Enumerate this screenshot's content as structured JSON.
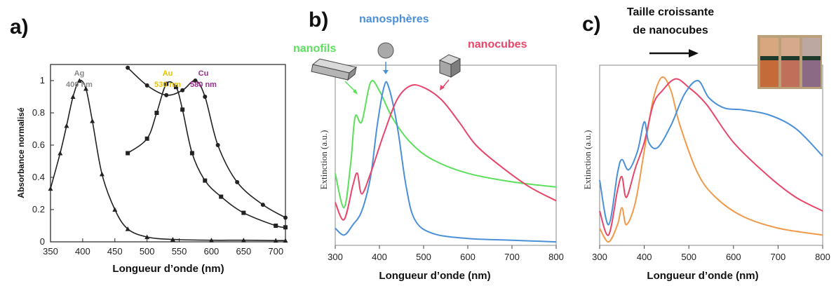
{
  "chart_data": [
    {
      "panel": "a)",
      "type": "line",
      "xlabel": "Longueur d’onde (nm)",
      "ylabel": "Absorbance normalisé",
      "xlim": [
        350,
        715
      ],
      "ylim": [
        0,
        1.1
      ],
      "xticks": [
        350,
        400,
        450,
        500,
        550,
        600,
        650,
        700
      ],
      "yticks": [
        0,
        0.2,
        0.4,
        0.6,
        0.8,
        1
      ],
      "annotations": [
        {
          "metal": "Ag",
          "peak": "400 nm",
          "color": "#8a8a8a"
        },
        {
          "metal": "Au",
          "peak": "530 nm",
          "color": "#e6c200"
        },
        {
          "metal": "Cu",
          "peak": "580 nm",
          "color": "#9b2c8f"
        }
      ],
      "series": [
        {
          "name": "Ag",
          "marker": "triangle",
          "x": [
            350,
            365,
            375,
            385,
            395,
            405,
            415,
            430,
            450,
            470,
            500,
            540,
            600,
            650,
            700,
            715
          ],
          "y": [
            0.33,
            0.55,
            0.72,
            0.9,
            1.0,
            0.95,
            0.75,
            0.42,
            0.2,
            0.08,
            0.03,
            0.015,
            0.01,
            0.01,
            0.008,
            0.008
          ]
        },
        {
          "name": "Au",
          "marker": "square",
          "x": [
            470,
            500,
            515,
            530,
            545,
            555,
            570,
            590,
            615,
            650,
            700,
            715
          ],
          "y": [
            0.55,
            0.64,
            0.8,
            0.98,
            0.96,
            0.82,
            0.55,
            0.38,
            0.28,
            0.18,
            0.1,
            0.09
          ]
        },
        {
          "name": "Cu",
          "marker": "circle",
          "x": [
            470,
            500,
            530,
            555,
            575,
            590,
            610,
            640,
            680,
            715
          ],
          "y": [
            1.08,
            0.97,
            0.91,
            0.94,
            1.0,
            0.9,
            0.6,
            0.37,
            0.23,
            0.15
          ]
        }
      ]
    },
    {
      "panel": "b)",
      "type": "line",
      "xlabel": "Longueur d’onde (nm)",
      "ylabel": "Extinction (a.u.)",
      "xlim": [
        300,
        800
      ],
      "ylim": [
        0,
        1.05
      ],
      "xticks": [
        300,
        400,
        500,
        600,
        700,
        800
      ],
      "series": [
        {
          "name": "nanofils",
          "color": "#5ce05c",
          "x": [
            300,
            320,
            335,
            345,
            360,
            380,
            400,
            430,
            470,
            520,
            600,
            700,
            800
          ],
          "y": [
            0.42,
            0.22,
            0.48,
            0.75,
            0.72,
            0.95,
            0.9,
            0.74,
            0.6,
            0.5,
            0.42,
            0.37,
            0.34
          ]
        },
        {
          "name": "nanosphères",
          "color": "#4a90d9",
          "x": [
            300,
            320,
            340,
            360,
            380,
            395,
            410,
            420,
            440,
            460,
            480,
            520,
            600,
            700,
            800
          ],
          "y": [
            0.1,
            0.06,
            0.12,
            0.2,
            0.4,
            0.7,
            0.92,
            0.93,
            0.7,
            0.35,
            0.15,
            0.07,
            0.04,
            0.03,
            0.02
          ]
        },
        {
          "name": "nanocubes",
          "color": "#e8456a",
          "x": [
            300,
            320,
            340,
            350,
            360,
            380,
            410,
            440,
            470,
            500,
            540,
            580,
            620,
            680,
            740,
            800
          ],
          "y": [
            0.25,
            0.15,
            0.35,
            0.42,
            0.3,
            0.42,
            0.65,
            0.85,
            0.93,
            0.92,
            0.85,
            0.72,
            0.58,
            0.45,
            0.34,
            0.26
          ]
        }
      ],
      "labels": [
        "nanofils",
        "nanosphères",
        "nanocubes"
      ]
    },
    {
      "panel": "c)",
      "type": "line",
      "xlabel": "Longueur d’onde (nm)",
      "ylabel": "Extinction (a.u.)",
      "xlim": [
        300,
        800
      ],
      "ylim": [
        0,
        1.05
      ],
      "xticks": [
        300,
        400,
        500,
        600,
        700,
        800
      ],
      "title": "Taille croissante de nanocubes",
      "series": [
        {
          "name": "",
          "color": "#f2994a",
          "x": [
            300,
            320,
            340,
            350,
            360,
            380,
            400,
            420,
            440,
            460,
            480,
            520,
            560,
            620,
            700,
            800
          ],
          "y": [
            0.1,
            0.02,
            0.12,
            0.22,
            0.12,
            0.25,
            0.55,
            0.85,
            0.98,
            0.9,
            0.7,
            0.42,
            0.28,
            0.17,
            0.1,
            0.06
          ]
        },
        {
          "name": "",
          "color": "#e8456a",
          "x": [
            300,
            320,
            340,
            350,
            360,
            380,
            400,
            420,
            440,
            470,
            500,
            540,
            600,
            680,
            740,
            800
          ],
          "y": [
            0.2,
            0.06,
            0.32,
            0.4,
            0.28,
            0.45,
            0.6,
            0.82,
            0.9,
            0.97,
            0.92,
            0.82,
            0.6,
            0.4,
            0.28,
            0.2
          ]
        },
        {
          "name": "",
          "color": "#4a90d9",
          "x": [
            300,
            320,
            340,
            350,
            365,
            385,
            400,
            410,
            430,
            460,
            490,
            520,
            545,
            580,
            620,
            680,
            740,
            800
          ],
          "y": [
            0.38,
            0.12,
            0.42,
            0.5,
            0.44,
            0.55,
            0.72,
            0.6,
            0.57,
            0.7,
            0.88,
            0.96,
            0.86,
            0.8,
            0.79,
            0.76,
            0.68,
            0.52
          ]
        }
      ]
    }
  ],
  "colors": {
    "ink": "#111111",
    "green": "#5ce05c",
    "blue": "#4a90d9",
    "pink": "#e8456a",
    "orange": "#f2994a"
  }
}
